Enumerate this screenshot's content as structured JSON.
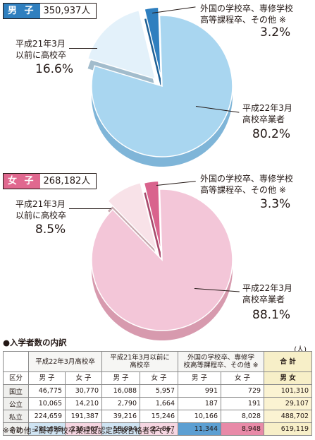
{
  "colors": {
    "male_tag": "#2f7fbf",
    "female_tag": "#e0688f",
    "male_slices": [
      "#a9d6f0",
      "#e3f1fa",
      "#2f7fbf"
    ],
    "male_sides": [
      "#7fb5d8",
      "#a2bccc",
      "#1d5f94"
    ],
    "male_old_top": "#b9c9d3",
    "female_slices": [
      "#f3c6d8",
      "#f8e2e8",
      "#d9638d"
    ],
    "female_sides": [
      "#d79aae",
      "#c7a9af",
      "#a8486b"
    ],
    "female_old_top": "#dcbcc1"
  },
  "male": {
    "tag": "男 子",
    "total": "350,937人",
    "labels": {
      "other_line1": "外国の学校卒、専修学校",
      "other_line2": "高等課程卒、その他 ※",
      "other_pct": "3.2%",
      "old_line1": "平成21年3月",
      "old_line2": "以前に高校卒",
      "old_pct": "16.6%",
      "new_line1": "平成22年3月",
      "new_line2": "高校卒業者",
      "new_pct": "80.2%"
    }
  },
  "female": {
    "tag": "女 子",
    "total": "268,182人",
    "labels": {
      "other_line1": "外国の学校卒、専修学校",
      "other_line2": "高等課程卒、その他 ※",
      "other_pct": "3.3%",
      "old_line1": "平成21年3月",
      "old_line2": "以前に高校卒",
      "old_pct": "8.5%",
      "new_line1": "平成22年3月",
      "new_line2": "高校卒業者",
      "new_pct": "88.1%"
    }
  },
  "chart_data": [
    {
      "type": "pie",
      "title": "男 子 350,937人",
      "categories": [
        "平成22年3月高校卒業者",
        "平成21年3月以前に高校卒",
        "外国の学校卒、専修学校高等課程卒、その他 ※"
      ],
      "values": [
        80.2,
        16.6,
        3.2
      ],
      "unit": "%"
    },
    {
      "type": "pie",
      "title": "女 子 268,182人",
      "categories": [
        "平成22年3月高校卒業者",
        "平成21年3月以前に高校卒",
        "外国の学校卒、専修学校高等課程卒、その他 ※"
      ],
      "values": [
        88.1,
        8.5,
        3.3
      ],
      "unit": "%"
    },
    {
      "type": "table",
      "title": "入学者数の内訳",
      "unit_note": "(人)",
      "group_headers": [
        "平成22年3月高校卒",
        "平成21年3月以前に高校卒",
        "外国の学校卒、専修学校高等課程卒、その他 ※",
        "合 計"
      ],
      "sub_headers": [
        "区分",
        "男 子",
        "女 子",
        "男 子",
        "女 子",
        "男 子",
        "女 子",
        "男 女"
      ],
      "rows": [
        [
          "国立",
          "46,775",
          "30,770",
          "16,088",
          "5,957",
          "991",
          "729",
          "101,310"
        ],
        [
          "公立",
          "10,065",
          "14,210",
          "2,790",
          "1,664",
          "187",
          "191",
          "29,107"
        ],
        [
          "私立",
          "224,659",
          "191,387",
          "39,216",
          "15,246",
          "10,166",
          "8,028",
          "488,702"
        ],
        [
          "合計",
          "281,499",
          "236,367",
          "58,094",
          "22,867",
          "11,344",
          "8,948",
          "619,119"
        ]
      ]
    }
  ],
  "table": {
    "section_title": "●入学者数の内訳",
    "unit": "(人)",
    "group1": "平成22年3月高校卒",
    "group2_line1": "平成21年3月以前に",
    "group2_line2": "高校卒",
    "group3_line1": "外国の学校卒、専修学",
    "group3_line2": "校高等課程卒、その他 ※",
    "group4": "合 計",
    "kubun": "区分",
    "male": "男 子",
    "female": "女 子",
    "both": "男 女",
    "rows": [
      {
        "label": "国立",
        "v": [
          "46,775",
          "30,770",
          "16,088",
          "5,957",
          "991",
          "729",
          "101,310"
        ]
      },
      {
        "label": "公立",
        "v": [
          "10,065",
          "14,210",
          "2,790",
          "1,664",
          "187",
          "191",
          "29,107"
        ]
      },
      {
        "label": "私立",
        "v": [
          "224,659",
          "191,387",
          "39,216",
          "15,246",
          "10,166",
          "8,028",
          "488,702"
        ]
      },
      {
        "label": "合計",
        "v": [
          "281,499",
          "236,367",
          "58,094",
          "22,867",
          "11,344",
          "8,948",
          "619,119"
        ]
      }
    ]
  },
  "footnote": "※その他＝高等学校卒業程度認定試験合格者等です。"
}
